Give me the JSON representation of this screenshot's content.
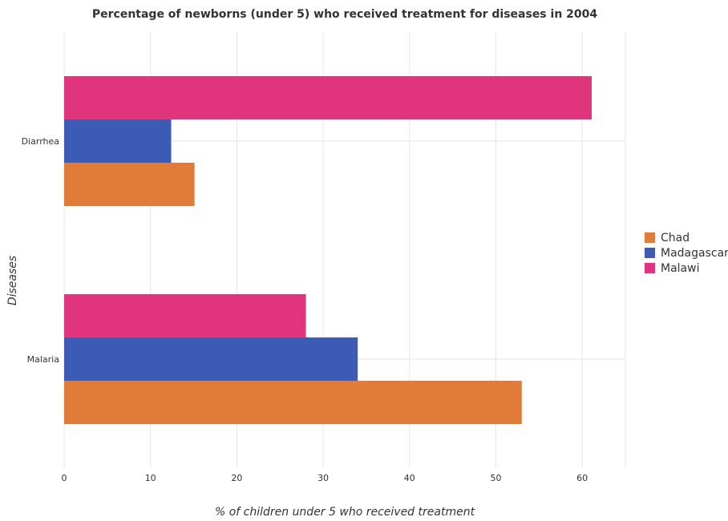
{
  "chart_data": {
    "type": "bar",
    "orientation": "horizontal",
    "title": "Percentage of newborns (under 5) who received treatment for diseases in 2004",
    "xlabel": "% of children under 5 who received treatment",
    "ylabel": "Diseases",
    "categories": [
      "Diarrhea",
      "Malaria"
    ],
    "series": [
      {
        "name": "Chad",
        "color": "#e07b39",
        "values": [
          15.1,
          53.0
        ]
      },
      {
        "name": "Madagascar",
        "color": "#3b5bb5",
        "values": [
          12.4,
          34.0
        ]
      },
      {
        "name": "Malawi",
        "color": "#e0347c",
        "values": [
          61.1,
          28.0
        ]
      }
    ],
    "xlim": [
      0,
      65
    ],
    "xticks": [
      "0",
      "10",
      "20",
      "30",
      "40",
      "50",
      "60"
    ],
    "grid": true,
    "legend": "right"
  }
}
